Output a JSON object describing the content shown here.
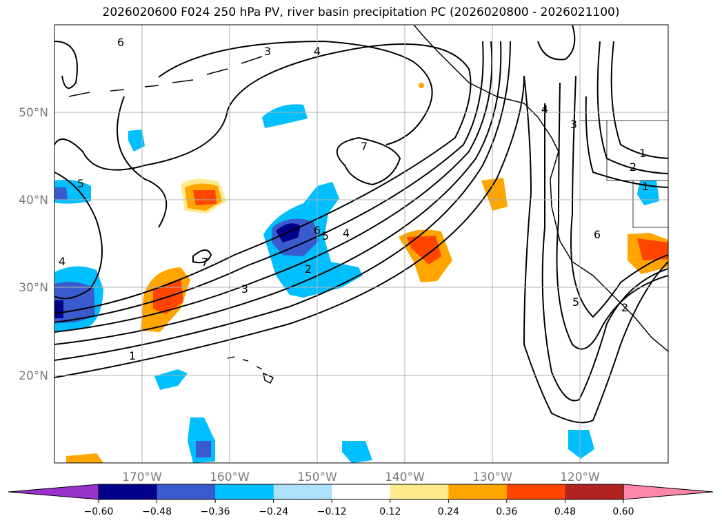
{
  "title": "2026020600 F024 250 hPa PV, river basin precipitation PC (2026020800 - 2026021100)",
  "map": {
    "lon_labels": [
      "170°W",
      "160°W",
      "150°W",
      "140°W",
      "130°W",
      "120°W"
    ],
    "lat_labels": [
      "50°N",
      "40°N",
      "30°N",
      "20°N"
    ],
    "contour_labels": [
      "6",
      "3",
      "4",
      "5",
      "7",
      "6",
      "5",
      "4",
      "3",
      "2",
      "1",
      "7",
      "4",
      "2",
      "1",
      "6",
      "5",
      "4",
      "3",
      "2",
      "1"
    ]
  },
  "colorbar": {
    "ticks": [
      "−0.60",
      "−0.48",
      "−0.36",
      "−0.24",
      "−0.12",
      "0.12",
      "0.24",
      "0.36",
      "0.48",
      "0.60"
    ],
    "colors": [
      "#9932cc",
      "#00008b",
      "#3a5bcd",
      "#00bfff",
      "#ade2fa",
      "#ffffff",
      "#ffe98a",
      "#ffa500",
      "#ff4500",
      "#b22222",
      "#ff88aa"
    ]
  }
}
